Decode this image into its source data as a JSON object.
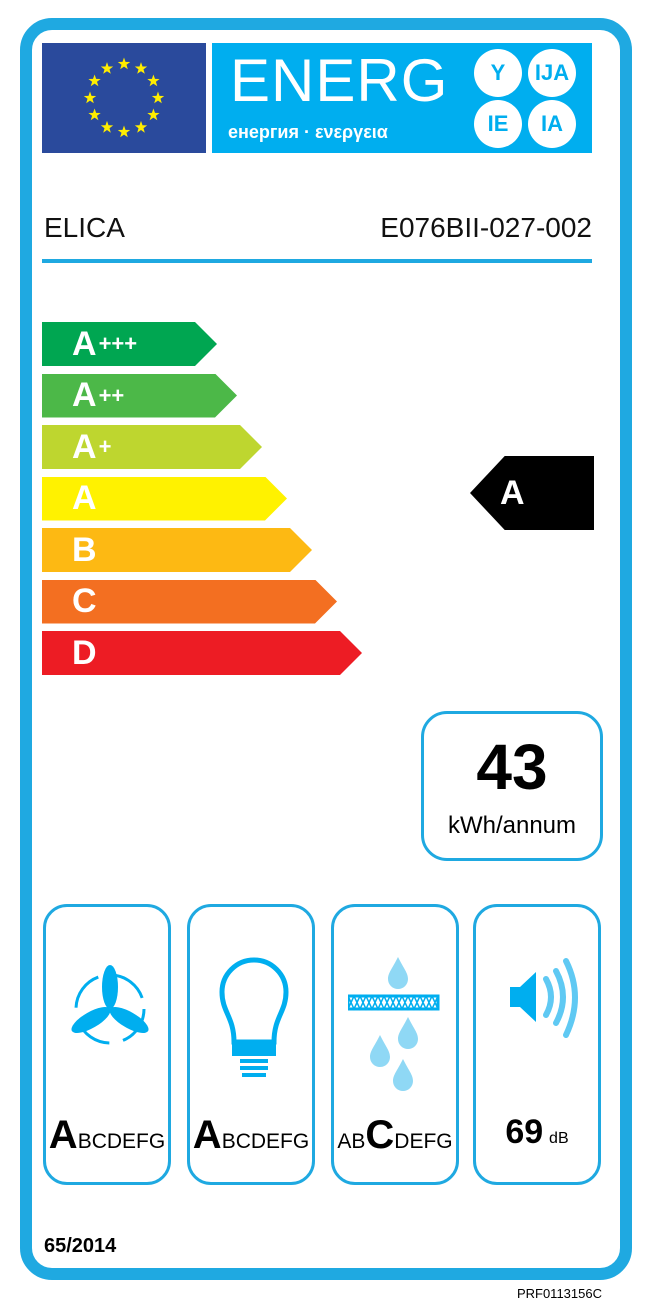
{
  "header": {
    "logo_word": "ENERG",
    "logo_sub": "енергия · ενεργεια",
    "suffixes": [
      "Y",
      "IJA",
      "IE",
      "IA"
    ]
  },
  "supplier": "ELICA",
  "model": "E076BII-027-002",
  "scale": [
    {
      "label": "A",
      "sup": "+++",
      "color": "#00a651"
    },
    {
      "label": "A",
      "sup": "++",
      "color": "#4cb848"
    },
    {
      "label": "A",
      "sup": "+",
      "color": "#bed62f"
    },
    {
      "label": "A",
      "sup": "",
      "color": "#fff200"
    },
    {
      "label": "B",
      "sup": "",
      "color": "#fdb913"
    },
    {
      "label": "C",
      "sup": "",
      "color": "#f36f21"
    },
    {
      "label": "D",
      "sup": "",
      "color": "#ed1c24"
    }
  ],
  "rating": "A",
  "consumption": {
    "value": "43",
    "unit": "kWh/annum"
  },
  "pictograms": [
    {
      "icon": "fan-icon",
      "pre": "",
      "active": "A",
      "post": "BCDEFG"
    },
    {
      "icon": "lightbulb-icon",
      "pre": "",
      "active": "A",
      "post": "BCDEFG"
    },
    {
      "icon": "grease-filter-icon",
      "pre": "AB",
      "active": "C",
      "post": "DEFG"
    },
    {
      "icon": "speaker-icon",
      "value": "69",
      "unit": "dB"
    }
  ],
  "regulation": "65/2014",
  "code": "PRF0113156C",
  "colors": {
    "frame": "#1fa9e1",
    "energ": "#00aeef",
    "flag": "#2a4a9c",
    "stars": "#ffed00"
  }
}
